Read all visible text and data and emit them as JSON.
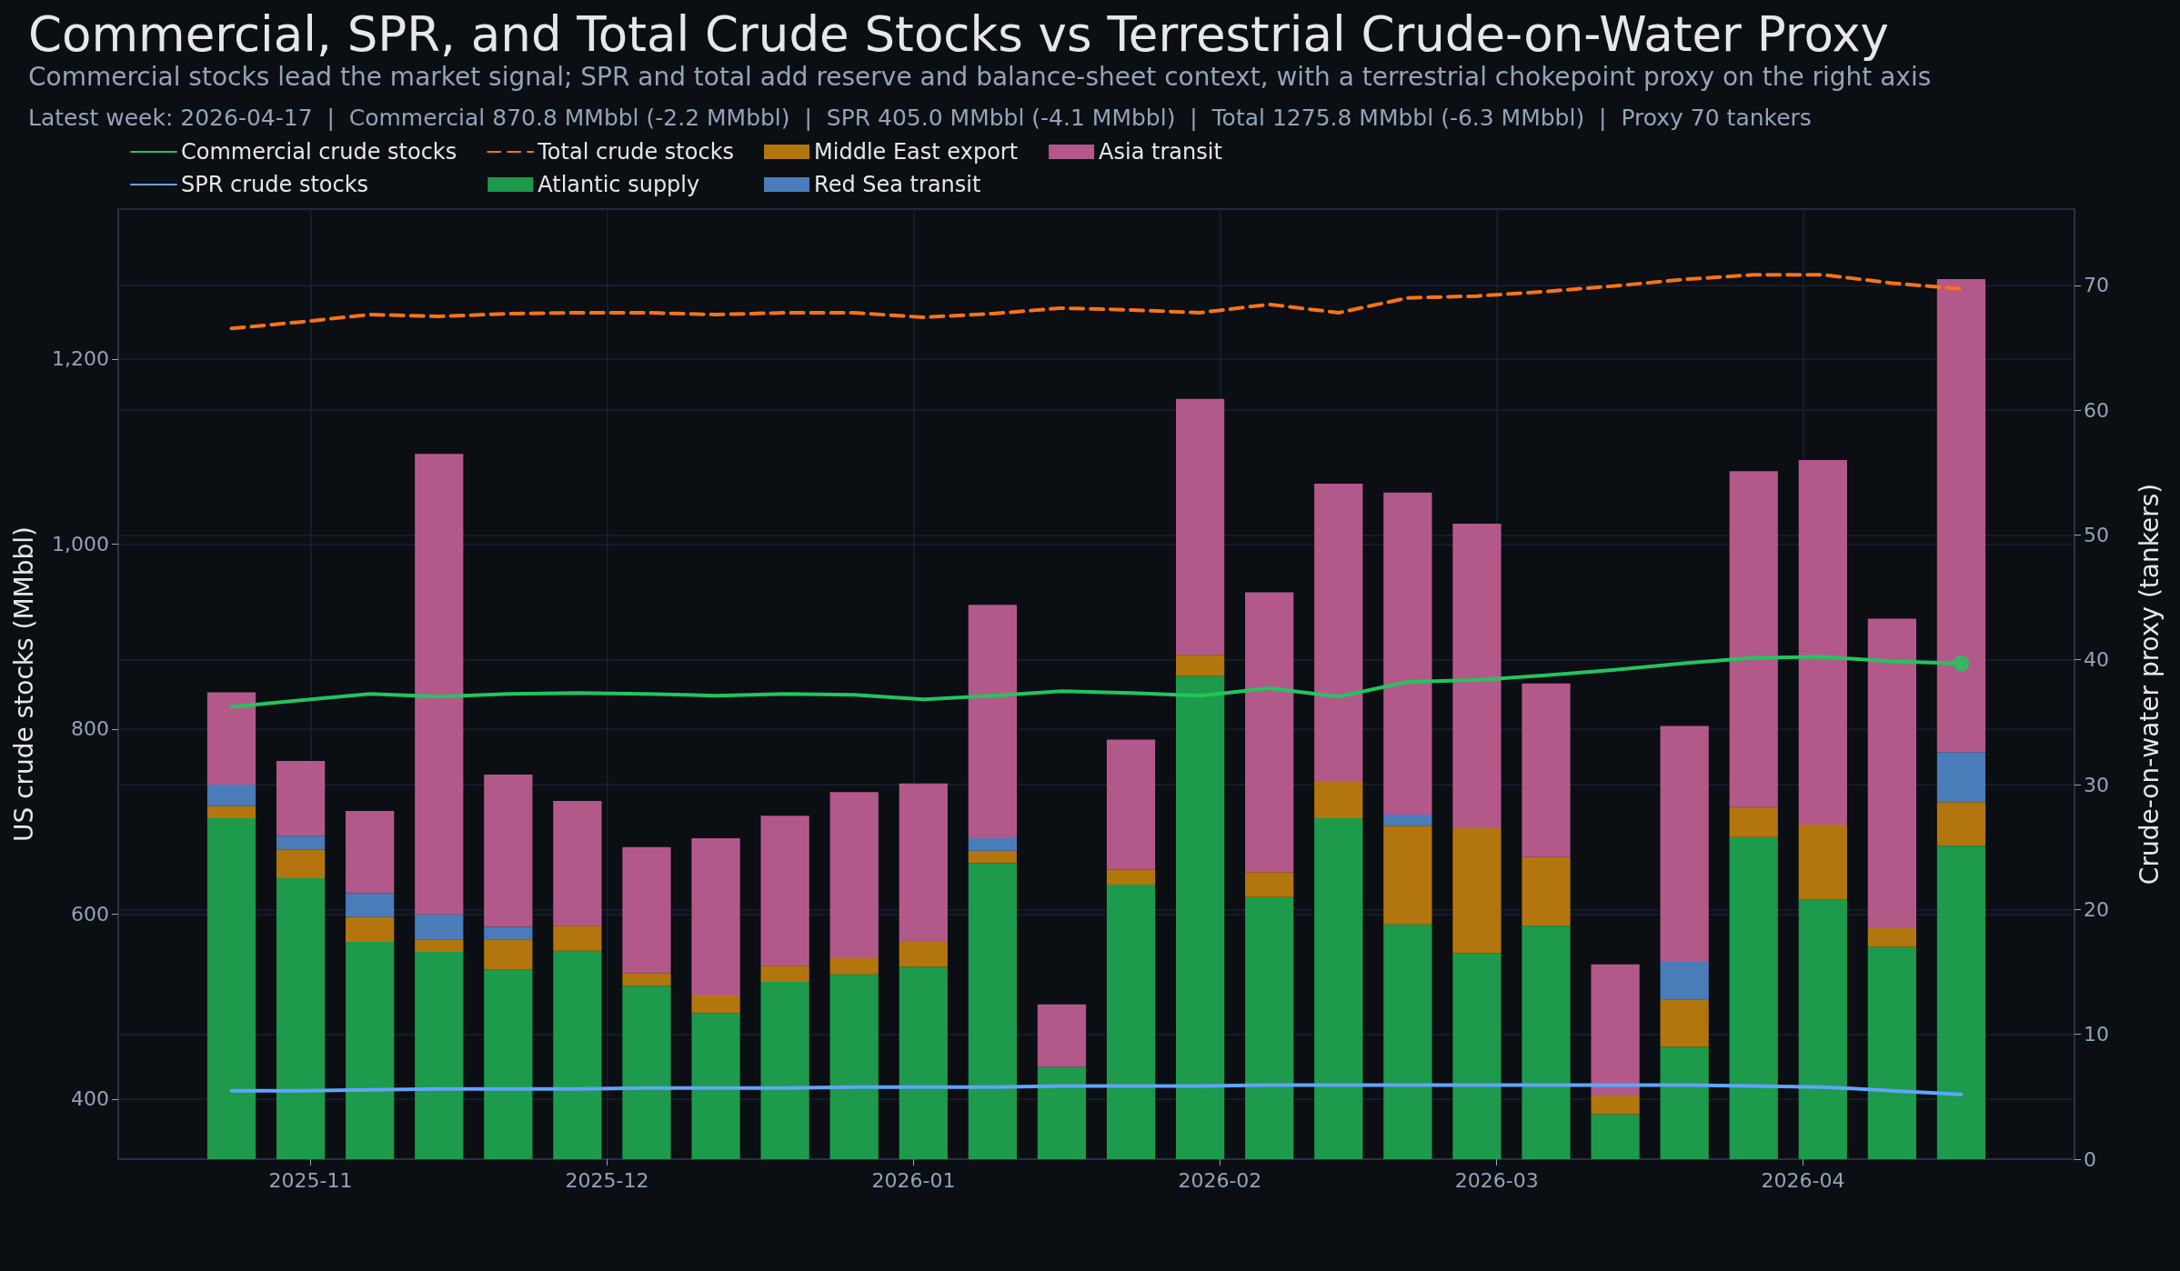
{
  "chart_data": {
    "type": "bar",
    "title": "Commercial, SPR, and Total Crude Stocks vs Terrestrial Crude-on-Water Proxy",
    "subtitle": "Commercial stocks lead the market signal; SPR and total add reserve and balance-sheet context, with a terrestrial chokepoint proxy on the right axis",
    "annotations": [
      "Latest week: 2026-04-17  |  Commercial 870.8 MMbbl (-2.2 MMbbl)  |  SPR 405.0 MMbbl (-4.1 MMbbl)  |  Total 1275.8 MMbbl (-6.3 MMbbl)  |  Proxy 70 tankers"
    ],
    "ylabel": "US crude stocks (MMbbl)",
    "y2label": "Crude-on-water proxy (tankers)",
    "x": [
      "2025-10-24",
      "2025-10-31",
      "2025-11-07",
      "2025-11-14",
      "2025-11-21",
      "2025-11-28",
      "2025-12-05",
      "2025-12-12",
      "2025-12-19",
      "2025-12-26",
      "2026-01-02",
      "2026-01-09",
      "2026-01-16",
      "2026-01-23",
      "2026-01-30",
      "2026-02-06",
      "2026-02-13",
      "2026-02-20",
      "2026-02-27",
      "2026-03-06",
      "2026-03-13",
      "2026-03-20",
      "2026-03-27",
      "2026-04-03",
      "2026-04-10",
      "2026-04-17"
    ],
    "xlim": [
      "2025-10-12T13:00",
      "2026-04-28T11:00"
    ],
    "xticks": [
      "2025-11",
      "2025-12",
      "2026-01",
      "2026-02",
      "2026-03",
      "2026-04"
    ],
    "ylim": [
      335,
      1362
    ],
    "yticks": [
      400,
      600,
      800,
      {
        "value": 1000,
        "label": "1,000"
      },
      {
        "value": 1200,
        "label": "1,200"
      }
    ],
    "y2lim": [
      0,
      76.1
    ],
    "y2ticks": [
      0,
      10,
      20,
      30,
      40,
      50,
      60,
      70
    ],
    "stacked": true,
    "grid": true,
    "legend": "top left",
    "series": [
      {
        "name": "Commercial crude stocks",
        "type": "line",
        "color": "#22c55e",
        "line_style": "solid",
        "values": [
          824,
          831,
          838,
          835,
          838,
          839,
          838,
          836,
          838,
          837,
          832,
          836,
          841,
          839,
          836,
          844,
          835,
          851,
          853,
          858,
          864,
          871,
          877,
          878,
          873,
          870.8
        ]
      },
      {
        "name": "SPR crude stocks",
        "type": "line",
        "color": "#60a5fa",
        "line_style": "solid",
        "values": [
          409,
          409,
          410,
          411,
          411,
          411,
          412,
          412,
          412,
          413,
          413,
          413,
          414,
          414,
          414,
          415,
          415,
          415,
          415,
          415,
          415,
          415,
          414,
          413,
          409,
          405.0
        ]
      },
      {
        "name": "Total crude stocks",
        "type": "line",
        "color": "#f97316",
        "line_style": "dashed",
        "values": [
          1233,
          1240,
          1248,
          1246,
          1249,
          1250,
          1250,
          1248,
          1250,
          1250,
          1245,
          1249,
          1255,
          1253,
          1250,
          1259,
          1250,
          1266,
          1268,
          1273,
          1279,
          1286,
          1291,
          1291,
          1282,
          1275.8
        ]
      },
      {
        "name": "Atlantic supply",
        "axis": "y2",
        "color": "#1d9a4b",
        "values": [
          27.3,
          22.5,
          17.4,
          16.6,
          15.2,
          16.7,
          13.9,
          11.7,
          14.2,
          14.8,
          15.4,
          23.7,
          7.4,
          22.0,
          38.7,
          21.0,
          27.3,
          18.8,
          16.5,
          18.7,
          3.6,
          9.0,
          25.8,
          20.8,
          17.0,
          25.1
        ]
      },
      {
        "name": "Middle East export",
        "axis": "y2",
        "color": "#b3760e",
        "values": [
          1.0,
          2.3,
          2.0,
          1.0,
          2.4,
          2.0,
          1.0,
          1.4,
          1.3,
          1.3,
          2.0,
          1.0,
          0,
          1.2,
          1.7,
          2.0,
          3.0,
          7.9,
          10.0,
          5.5,
          1.5,
          3.8,
          2.4,
          6.0,
          1.5,
          3.5
        ]
      },
      {
        "name": "Red Sea transit",
        "axis": "y2",
        "color": "#4a7cb9",
        "values": [
          1.7,
          1.1,
          1.9,
          2.0,
          1.0,
          0,
          0,
          0,
          0,
          0,
          0,
          1.0,
          0,
          0,
          0,
          0,
          0,
          0.9,
          0,
          0,
          0,
          3.0,
          0,
          0,
          0,
          4.0
        ]
      },
      {
        "name": "Asia transit",
        "axis": "y2",
        "color": "#b3598a",
        "values": [
          7.4,
          6.0,
          6.6,
          36.9,
          12.2,
          10.0,
          10.1,
          12.6,
          12.0,
          13.3,
          12.7,
          18.7,
          5.0,
          10.4,
          20.5,
          22.4,
          23.8,
          25.8,
          24.4,
          13.9,
          10.5,
          18.9,
          26.9,
          29.2,
          24.8,
          37.9
        ]
      },
      {
        "type": "scatter",
        "color": "#22c55e",
        "marker": "circle",
        "x": [
          "2026-04-17"
        ],
        "values": [
          870.8
        ]
      }
    ]
  }
}
